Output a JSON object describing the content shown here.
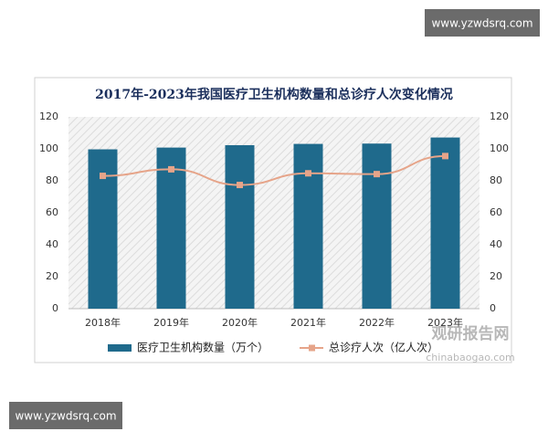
{
  "chart_data": {
    "type": "bar-line",
    "title": "2017年-2023年我国医疗卫生机构数量和总诊疗人次变化情况",
    "categories": [
      "2018年",
      "2019年",
      "2020年",
      "2021年",
      "2022年",
      "2023年"
    ],
    "series": [
      {
        "name": "医疗卫生机构数量（万个）",
        "color": "#1f6a8c",
        "type": "bar",
        "values": [
          99.7,
          100.8,
          102.3,
          103.1,
          103.3,
          107.1
        ]
      },
      {
        "name": "总诊疗人次（亿人次）",
        "color": "#e6a489",
        "type": "line",
        "axis": "y2",
        "values": [
          83.1,
          87.2,
          77.4,
          84.7,
          84.2,
          95.5
        ]
      }
    ],
    "ylim": [
      0,
      120
    ],
    "yticks": [
      0,
      20,
      40,
      60,
      80,
      100,
      120
    ],
    "y2lim": [
      0,
      120
    ],
    "y2ticks": [
      0,
      20,
      40,
      60,
      80,
      100,
      120
    ],
    "legend": "bottom"
  },
  "watermarks": {
    "top": "www.yzwdsrq.com",
    "bottom": "www.yzwdsrq.com",
    "brand": "观研报告网",
    "brand_url": "chinabaogao.com"
  }
}
